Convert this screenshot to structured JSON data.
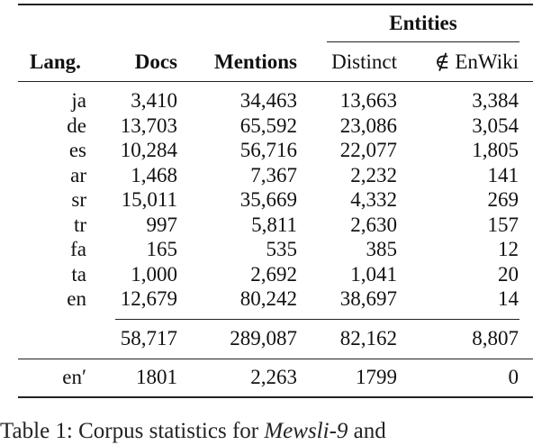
{
  "table": {
    "group_header": "Entities",
    "columns": {
      "lang": "Lang.",
      "docs": "Docs",
      "mentions": "Mentions",
      "distinct": "Distinct",
      "not_in_enwiki": "∉ EnWiki"
    },
    "rows": [
      {
        "lang": "ja",
        "docs": "3,410",
        "mentions": "34,463",
        "distinct": "13,663",
        "not_in_enwiki": "3,384"
      },
      {
        "lang": "de",
        "docs": "13,703",
        "mentions": "65,592",
        "distinct": "23,086",
        "not_in_enwiki": "3,054"
      },
      {
        "lang": "es",
        "docs": "10,284",
        "mentions": "56,716",
        "distinct": "22,077",
        "not_in_enwiki": "1,805"
      },
      {
        "lang": "ar",
        "docs": "1,468",
        "mentions": "7,367",
        "distinct": "2,232",
        "not_in_enwiki": "141"
      },
      {
        "lang": "sr",
        "docs": "15,011",
        "mentions": "35,669",
        "distinct": "4,332",
        "not_in_enwiki": "269"
      },
      {
        "lang": "tr",
        "docs": "997",
        "mentions": "5,811",
        "distinct": "2,630",
        "not_in_enwiki": "157"
      },
      {
        "lang": "fa",
        "docs": "165",
        "mentions": "535",
        "distinct": "385",
        "not_in_enwiki": "12"
      },
      {
        "lang": "ta",
        "docs": "1,000",
        "mentions": "2,692",
        "distinct": "1,041",
        "not_in_enwiki": "20"
      },
      {
        "lang": "en",
        "docs": "12,679",
        "mentions": "80,242",
        "distinct": "38,697",
        "not_in_enwiki": "14"
      }
    ],
    "total": {
      "docs": "58,717",
      "mentions": "289,087",
      "distinct": "82,162",
      "not_in_enwiki": "8,807"
    },
    "extra_row": {
      "lang": "en′",
      "docs": "1801",
      "mentions": "2,263",
      "distinct": "1799",
      "not_in_enwiki": "0"
    }
  },
  "caption": {
    "prefix": "Table 1:  Corpus statistics for ",
    "italic": "Mewsli-9",
    "suffix": " and"
  }
}
